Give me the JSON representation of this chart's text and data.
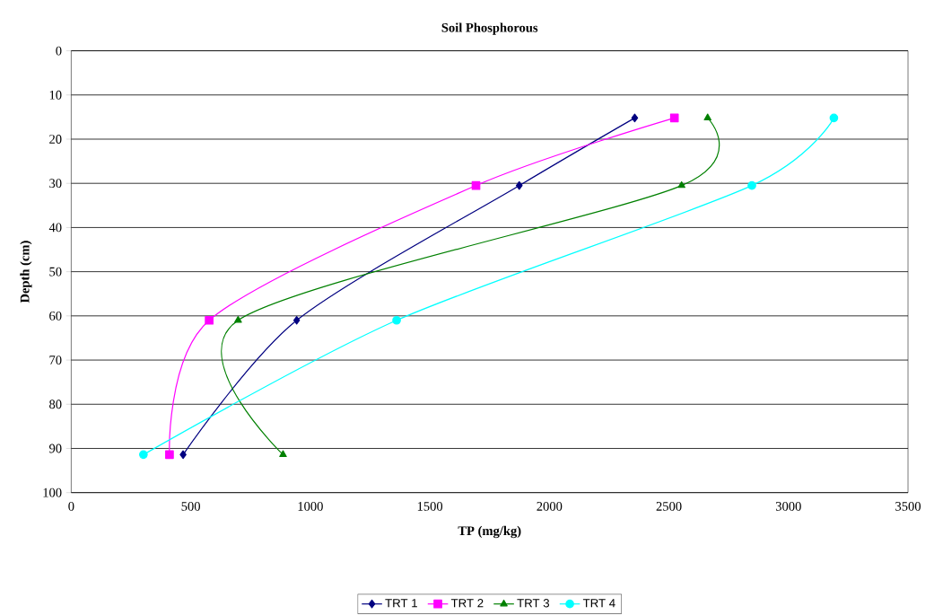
{
  "chart_data": {
    "type": "line",
    "title": "Soil Phosphorous",
    "xlabel": "TP (mg/kg)",
    "ylabel": "Depth (cm)",
    "xlim": [
      0,
      3500
    ],
    "xticks": [
      0,
      500,
      1000,
      1500,
      2000,
      2500,
      3000,
      3500
    ],
    "ylim": [
      100,
      0
    ],
    "yticks": [
      0,
      10,
      20,
      30,
      40,
      50,
      60,
      70,
      80,
      90,
      100
    ],
    "grid": "y",
    "legend": "bottom",
    "line_style": "solid",
    "series": [
      {
        "name": "TRT 1",
        "color": "#000080",
        "marker": "diamond",
        "x": [
          2357,
          1874,
          943,
          468
        ],
        "values": [
          15.2,
          30.5,
          61,
          91.4
        ]
      },
      {
        "name": "TRT 2",
        "color": "#ff00ff",
        "marker": "square",
        "x": [
          2523,
          1693,
          577,
          411
        ],
        "values": [
          15.2,
          30.5,
          61,
          91.4
        ]
      },
      {
        "name": "TRT 3",
        "color": "#008000",
        "marker": "triangle",
        "x": [
          2662,
          2553,
          698,
          886
        ],
        "values": [
          15.2,
          30.5,
          61,
          91.4
        ]
      },
      {
        "name": "TRT 4",
        "color": "#00ffff",
        "marker": "circle",
        "x": [
          3190,
          2847,
          1361,
          302
        ],
        "values": [
          15.2,
          30.5,
          61,
          91.4
        ]
      }
    ]
  }
}
